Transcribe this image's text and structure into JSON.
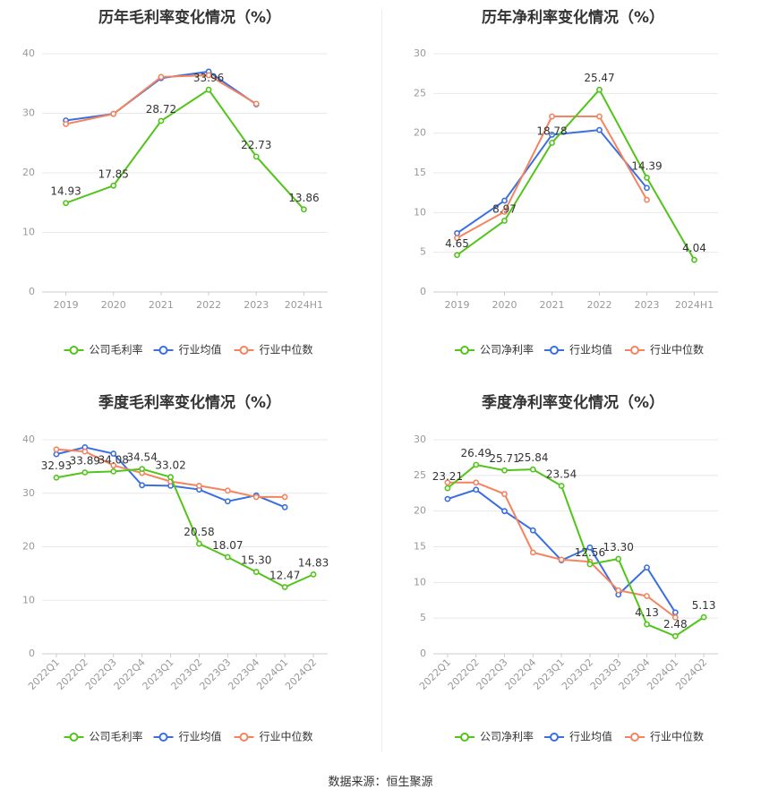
{
  "colors": {
    "company": "#52c41a",
    "industry_avg": "#3b6fe0",
    "industry_median": "#f4845f",
    "grid": "#e8e8e8",
    "axis_text": "#999999",
    "label_text": "#333333"
  },
  "source_text": "数据来源：恒生聚源",
  "chart_data": [
    {
      "type": "line",
      "title": "历年毛利率变化情况（%）",
      "categories": [
        "2019",
        "2020",
        "2021",
        "2022",
        "2023",
        "2024H1"
      ],
      "ylim": [
        0,
        40
      ],
      "yticks": [
        "0",
        "10",
        "20",
        "30",
        "40"
      ],
      "series": [
        {
          "name": "公司毛利率",
          "key": "company",
          "values": [
            14.93,
            17.85,
            28.72,
            33.96,
            22.73,
            13.86
          ],
          "labels": [
            "14.93",
            "17.85",
            "28.72",
            "33.96",
            "22.73",
            "13.86"
          ]
        },
        {
          "name": "行业均值",
          "key": "industry_avg",
          "values": [
            28.8,
            29.9,
            35.9,
            37.0,
            31.5,
            null
          ]
        },
        {
          "name": "行业中位数",
          "key": "industry_median",
          "values": [
            28.2,
            29.9,
            36.1,
            36.4,
            31.6,
            null
          ]
        }
      ],
      "legend": "bottom",
      "grid": true
    },
    {
      "type": "line",
      "title": "历年净利率变化情况（%）",
      "categories": [
        "2019",
        "2020",
        "2021",
        "2022",
        "2023",
        "2024H1"
      ],
      "ylim": [
        0,
        30
      ],
      "yticks": [
        "0",
        "5",
        "10",
        "15",
        "20",
        "25",
        "30"
      ],
      "series": [
        {
          "name": "公司净利率",
          "key": "company",
          "values": [
            4.65,
            8.97,
            18.78,
            25.47,
            14.39,
            4.04
          ],
          "labels": [
            "4.65",
            "8.97",
            "18.78",
            "25.47",
            "14.39",
            "4.04"
          ]
        },
        {
          "name": "行业均值",
          "key": "industry_avg",
          "values": [
            7.4,
            11.5,
            19.8,
            20.4,
            13.1,
            null
          ]
        },
        {
          "name": "行业中位数",
          "key": "industry_median",
          "values": [
            6.8,
            10.1,
            22.1,
            22.1,
            11.6,
            null
          ]
        }
      ],
      "legend": "bottom",
      "grid": true
    },
    {
      "type": "line",
      "title": "季度毛利率变化情况（%）",
      "categories": [
        "2022Q1",
        "2022Q2",
        "2022Q3",
        "2022Q4",
        "2023Q1",
        "2023Q2",
        "2023Q3",
        "2023Q4",
        "2024Q1",
        "2024Q2"
      ],
      "ylim": [
        0,
        40
      ],
      "yticks": [
        "0",
        "10",
        "20",
        "30",
        "40"
      ],
      "rotate_x": true,
      "series": [
        {
          "name": "公司毛利率",
          "key": "company",
          "values": [
            32.93,
            33.89,
            34.08,
            34.54,
            33.02,
            20.58,
            18.07,
            15.3,
            12.47,
            14.83
          ],
          "labels": [
            "32.93",
            "33.89",
            "34.08",
            "34.54",
            "33.02",
            "20.58",
            "18.07",
            "15.30",
            "12.47",
            "14.83"
          ]
        },
        {
          "name": "行业均值",
          "key": "industry_avg",
          "values": [
            37.3,
            38.6,
            37.4,
            31.5,
            31.4,
            30.7,
            28.5,
            29.6,
            27.4,
            null
          ]
        },
        {
          "name": "行业中位数",
          "key": "industry_median",
          "values": [
            38.2,
            37.8,
            35.2,
            33.8,
            32.2,
            31.4,
            30.5,
            29.3,
            29.3,
            null
          ]
        }
      ],
      "legend": "bottom",
      "grid": true
    },
    {
      "type": "line",
      "title": "季度净利率变化情况（%）",
      "categories": [
        "2022Q1",
        "2022Q2",
        "2022Q3",
        "2022Q4",
        "2023Q1",
        "2023Q2",
        "2023Q3",
        "2023Q4",
        "2024Q1",
        "2024Q2"
      ],
      "ylim": [
        0,
        30
      ],
      "yticks": [
        "0",
        "5",
        "10",
        "15",
        "20",
        "25",
        "30"
      ],
      "rotate_x": true,
      "series": [
        {
          "name": "公司净利率",
          "key": "company",
          "values": [
            23.21,
            26.49,
            25.71,
            25.84,
            23.54,
            12.56,
            13.3,
            4.13,
            2.48,
            5.13
          ],
          "labels": [
            "23.21",
            "26.49",
            "25.71",
            "25.84",
            "23.54",
            "12.56",
            "13.30",
            "4.13",
            "2.48",
            "5.13"
          ]
        },
        {
          "name": "行业均值",
          "key": "industry_avg",
          "values": [
            21.7,
            23.0,
            20.0,
            17.3,
            13.1,
            14.9,
            8.3,
            12.1,
            5.8,
            null
          ]
        },
        {
          "name": "行业中位数",
          "key": "industry_median",
          "values": [
            24.0,
            24.0,
            22.4,
            14.2,
            13.2,
            12.9,
            8.9,
            8.1,
            5.1,
            null
          ]
        }
      ],
      "legend": "bottom",
      "grid": true
    }
  ]
}
